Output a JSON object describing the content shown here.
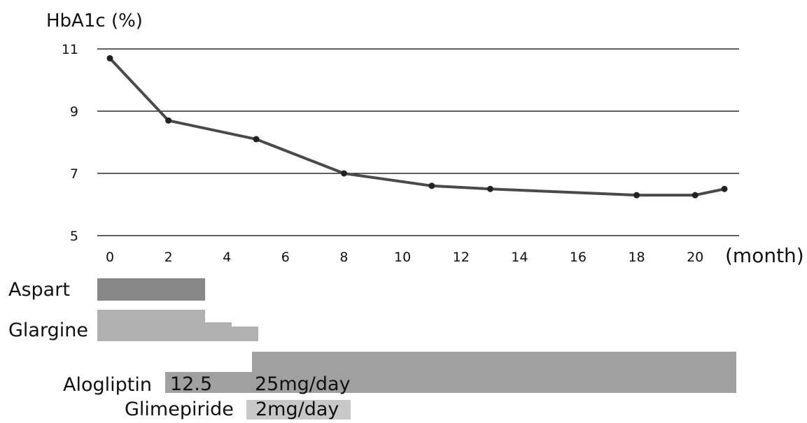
{
  "chart_data": {
    "type": "line",
    "ylabel": "HbA1c (%)",
    "x_unit": "(month)",
    "ylim": [
      5,
      11
    ],
    "yticks": [
      5,
      7,
      9,
      11
    ],
    "xlim": [
      0,
      21
    ],
    "xticks": [
      0,
      2,
      4,
      6,
      8,
      10,
      12,
      14,
      16,
      18,
      20
    ],
    "grid": true,
    "series": [
      {
        "x": [
          0,
          2,
          5,
          8,
          11,
          13,
          18,
          20,
          21
        ],
        "y": [
          10.7,
          8.7,
          8.1,
          7.0,
          6.6,
          6.5,
          6.3,
          6.3,
          6.5
        ]
      }
    ]
  },
  "treatments": {
    "aspart": {
      "label": "Aspart",
      "color": "#888888"
    },
    "glargine": {
      "label": "Glargine",
      "color": "#b0b0b0"
    },
    "alogliptin": {
      "label": "Alogliptin",
      "dose_low": "12.5",
      "dose_high": "25mg/day",
      "color": "#a0a0a0"
    },
    "glimepiride": {
      "label": "Glimepiride",
      "dose": "2mg/day",
      "color": "#c8c8c8"
    }
  },
  "colors": {
    "line": "#4a4a4a",
    "grid": "#000000"
  }
}
